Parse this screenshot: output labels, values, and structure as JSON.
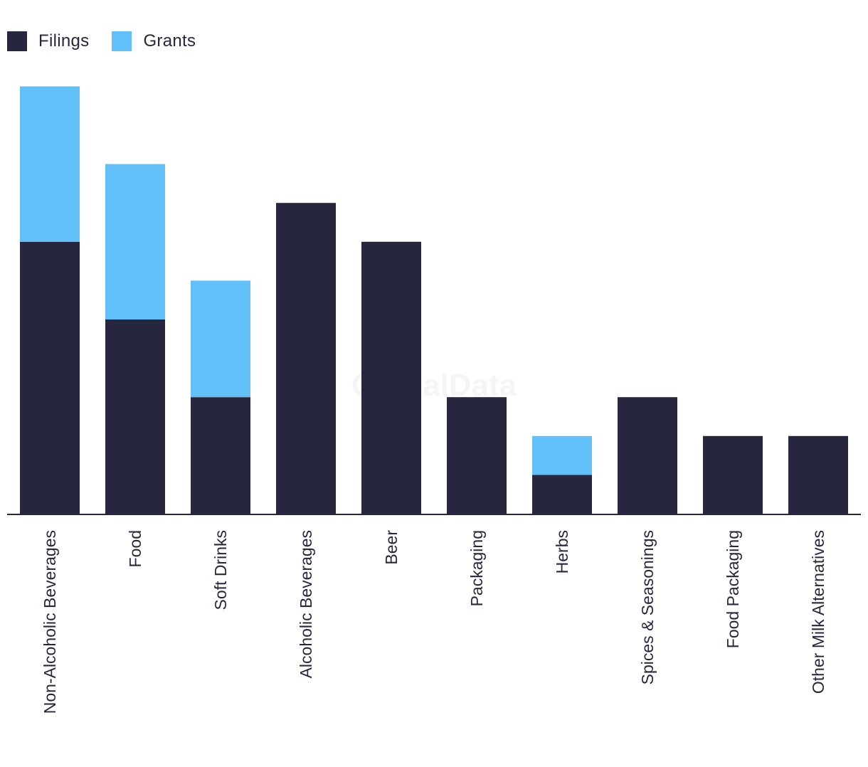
{
  "colors": {
    "filings": "#26273f",
    "grants": "#62c0f8",
    "axis": "#26273f",
    "text": "#26273f"
  },
  "watermark": "GlobalData",
  "chart_data": {
    "type": "bar",
    "stacked": true,
    "legend_position": "top-left",
    "grid": false,
    "categories": [
      "Non-Alcoholic Beverages",
      "Food",
      "Soft Drinks",
      "Alcoholic Beverages",
      "Beer",
      "Packaging",
      "Herbs",
      "Spices & Seasonings",
      "Food Packaging",
      "Other Milk Alternatives"
    ],
    "series": [
      {
        "name": "Filings",
        "color": "#26273f",
        "values": [
          7,
          5,
          3,
          8,
          7,
          3,
          1,
          3,
          2,
          2
        ]
      },
      {
        "name": "Grants",
        "color": "#62c0f8",
        "values": [
          4,
          4,
          3,
          0,
          0,
          0,
          1,
          0,
          0,
          0
        ]
      }
    ],
    "ylim": [
      0,
      11
    ]
  }
}
